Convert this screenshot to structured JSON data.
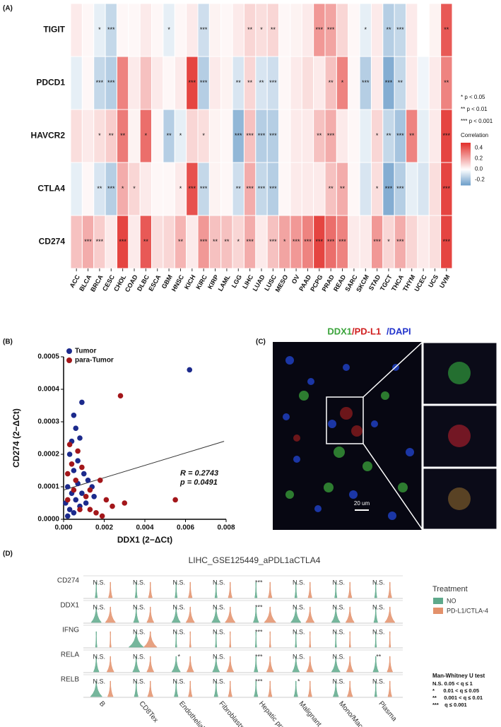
{
  "chart_data": [
    {
      "type": "heatmap",
      "panel_label": "(A)",
      "rows": [
        "TIGIT",
        "PDCD1",
        "HAVCR2",
        "CTLA4",
        "CD274"
      ],
      "categories": [
        "ACC",
        "BLCA",
        "BRCA",
        "CESC",
        "CHOL",
        "COAD",
        "DLBC",
        "ESCA",
        "GBM",
        "HNSC",
        "KICH",
        "KIRC",
        "KIRP",
        "LAML",
        "LGG",
        "LIHC",
        "LUAD",
        "LUSC",
        "MESO",
        "OV",
        "PAAD",
        "PCPG",
        "PRAD",
        "READ",
        "SARC",
        "SKCM",
        "STAD",
        "TGCT",
        "THCA",
        "THYM",
        "UCEC",
        "UCS",
        "UVM"
      ],
      "values": [
        [
          0.05,
          0.02,
          -0.05,
          -0.12,
          0.02,
          0.02,
          0.05,
          0.02,
          -0.05,
          0.02,
          0.05,
          -0.1,
          0.03,
          0.02,
          0.05,
          0.1,
          0.08,
          0.1,
          0.02,
          0.03,
          0.05,
          0.25,
          0.22,
          0.1,
          0.02,
          -0.05,
          0.05,
          -0.15,
          -0.12,
          0.05,
          0.0,
          0.03,
          0.4
        ],
        [
          -0.05,
          0.02,
          -0.12,
          -0.15,
          0.3,
          0.05,
          0.15,
          0.05,
          0.02,
          0.05,
          0.45,
          -0.15,
          0.05,
          0.03,
          -0.08,
          0.1,
          -0.08,
          -0.1,
          0.02,
          0.05,
          0.08,
          0.05,
          0.15,
          0.3,
          0.02,
          -0.15,
          0.05,
          -0.25,
          -0.12,
          0.05,
          -0.03,
          0.05,
          0.3
        ],
        [
          0.08,
          0.05,
          0.08,
          0.12,
          0.32,
          0.03,
          0.35,
          0.02,
          -0.15,
          -0.05,
          0.1,
          0.08,
          0.03,
          0.02,
          -0.22,
          0.15,
          -0.15,
          -0.15,
          0.02,
          0.05,
          0.05,
          0.15,
          0.2,
          0.05,
          0.02,
          -0.05,
          0.1,
          -0.12,
          -0.18,
          0.3,
          -0.05,
          0.05,
          0.45
        ],
        [
          -0.05,
          0.02,
          -0.08,
          -0.15,
          0.2,
          0.1,
          0.05,
          0.02,
          0.02,
          0.05,
          0.42,
          -0.12,
          0.03,
          0.02,
          -0.1,
          0.2,
          -0.12,
          -0.15,
          0.02,
          0.05,
          0.05,
          0.05,
          0.15,
          0.2,
          0.02,
          -0.08,
          0.08,
          -0.25,
          -0.15,
          -0.05,
          -0.08,
          0.08,
          0.45
        ],
        [
          0.15,
          0.2,
          0.12,
          0.05,
          0.45,
          0.05,
          0.4,
          0.08,
          0.1,
          0.18,
          0.05,
          0.25,
          0.15,
          0.15,
          0.1,
          0.2,
          0.05,
          0.15,
          0.22,
          0.25,
          0.3,
          0.45,
          0.35,
          0.3,
          0.05,
          0.05,
          0.25,
          0.1,
          0.2,
          0.1,
          0.05,
          0.08,
          0.45
        ]
      ],
      "stars": [
        [
          null,
          null,
          "*",
          "***",
          null,
          null,
          null,
          null,
          "*",
          null,
          null,
          "***",
          null,
          null,
          null,
          "**",
          "*",
          "**",
          null,
          null,
          null,
          "***",
          "***",
          null,
          null,
          "*",
          null,
          "**",
          "***",
          null,
          null,
          null,
          "**"
        ],
        [
          null,
          null,
          "***",
          "***",
          null,
          null,
          null,
          null,
          null,
          null,
          "***",
          "***",
          null,
          null,
          "**",
          "**",
          "**",
          "***",
          null,
          null,
          null,
          null,
          "**",
          "*",
          null,
          "***",
          null,
          "***",
          "**",
          null,
          null,
          null,
          "**"
        ],
        [
          null,
          null,
          "*",
          "**",
          "**",
          null,
          "*",
          null,
          "**",
          "*",
          null,
          "*",
          null,
          null,
          "***",
          "***",
          "***",
          "***",
          null,
          null,
          null,
          "**",
          "***",
          null,
          null,
          null,
          "*",
          "**",
          "***",
          "**",
          null,
          null,
          "***"
        ],
        [
          null,
          null,
          "**",
          "***",
          "*",
          "*",
          null,
          null,
          null,
          "*",
          "***",
          "***",
          null,
          null,
          "**",
          "***",
          "***",
          "***",
          null,
          null,
          null,
          null,
          "**",
          "**",
          null,
          null,
          "*",
          "***",
          "***",
          null,
          null,
          null,
          "***"
        ],
        [
          null,
          "***",
          "***",
          null,
          "***",
          null,
          "**",
          null,
          null,
          "**",
          null,
          "***",
          "**",
          "**",
          "*",
          "***",
          null,
          "***",
          "*",
          "***",
          "***",
          "***",
          "***",
          "***",
          null,
          null,
          "***",
          "*",
          "***",
          null,
          null,
          null,
          "***"
        ]
      ],
      "significance_legend": [
        "* p < 0.05",
        "** p < 0.01",
        "*** p < 0.001"
      ],
      "colorbar_title": "Correlation",
      "zlim": [
        -0.3,
        0.5
      ],
      "zticks": [
        0.4,
        0.2,
        {
          "value": 0,
          "label": "0.0"
        },
        -0.2
      ],
      "colors": [
        "#6b9dc9",
        "#ffffff",
        "#e2302c"
      ]
    },
    {
      "type": "scatter",
      "panel_label": "(B)",
      "xlabel": "DDX1 (2−ΔCt)",
      "ylabel": "CD274 (2−ΔCt)",
      "xlim": [
        0,
        0.008
      ],
      "ylim": [
        0,
        0.0005
      ],
      "xticks": [
        {
          "value": 0,
          "label": "0.000"
        },
        {
          "value": 0.002,
          "label": "0.002"
        },
        {
          "value": 0.004,
          "label": "0.004"
        },
        {
          "value": 0.006,
          "label": "0.006"
        },
        {
          "value": 0.008,
          "label": "0.008"
        }
      ],
      "yticks": [
        {
          "value": 0,
          "label": "0.0000"
        },
        {
          "value": 0.0001,
          "label": "0.0001"
        },
        {
          "value": 0.0002,
          "label": "0.0002"
        },
        {
          "value": 0.0003,
          "label": "0.0003"
        },
        {
          "value": 0.0004,
          "label": "0.0004"
        },
        {
          "value": 0.0005,
          "label": "0.0005"
        }
      ],
      "series": [
        {
          "name": "Tumor",
          "color": "#1c2a8c",
          "x": [
            0.0062,
            0.0009,
            0.0005,
            0.0006,
            0.0004,
            0.0008,
            0.0003,
            0.0007,
            0.0005,
            0.001,
            0.0012,
            0.0014,
            0.0002,
            0.0004,
            0.0006,
            0.0008,
            0.0003,
            0.0001,
            0.0005,
            0.0009,
            0.0011,
            0.0015,
            0.0007,
            0.0002
          ],
          "values": [
            0.00046,
            0.00036,
            0.00032,
            0.00028,
            0.00024,
            0.00025,
            0.0002,
            0.00018,
            0.00015,
            0.00014,
            0.00012,
            0.0001,
            0.0001,
            8e-05,
            6e-05,
            4e-05,
            3e-05,
            5e-05,
            2e-05,
            8e-05,
            5e-05,
            7e-05,
            0.00011,
            1e-05
          ]
        },
        {
          "name": "para-Tumor",
          "color": "#a3161a",
          "x": [
            0.0028,
            0.0003,
            0.0007,
            0.0004,
            0.0009,
            0.0002,
            0.0006,
            0.0018,
            0.0021,
            0.0024,
            0.003,
            0.0055,
            0.0013,
            0.0016,
            0.0019,
            0.0005,
            0.0011,
            0.0008,
            0.0002,
            0.0013
          ],
          "values": [
            0.00038,
            0.00023,
            0.00021,
            0.00017,
            0.00016,
            0.00014,
            0.00012,
            0.00012,
            6e-05,
            4e-05,
            5e-05,
            6e-05,
            3e-05,
            2e-05,
            1e-05,
            9e-05,
            7e-05,
            3e-05,
            6e-05,
            9e-05
          ]
        }
      ],
      "trend_line": {
        "x": [
          0,
          0.0079
        ],
        "y": [
          9e-05,
          0.00024
        ]
      },
      "annotations": [
        "R = 0.2743",
        "p = 0.0491"
      ]
    },
    {
      "type": "violin",
      "panel_label": "(D)",
      "title": "LIHC_GSE125449_aPDL1aCTLA4",
      "rows": [
        "CD274",
        "DDX1",
        "IFNG",
        "RELA",
        "RELB"
      ],
      "categories": [
        "B",
        "CD8Tex",
        "Endothelial",
        "Fibroblasts",
        "Hepatic progenitor",
        "Malignant",
        "Mono/Macro",
        "Plasma"
      ],
      "series": [
        {
          "name": "NO",
          "color": "#5ea98b",
          "values": [
            [
              0.1,
              0.1,
              0.1,
              0.1,
              0.1,
              0.1,
              0.1,
              0.1
            ],
            [
              0.6,
              0.3,
              0.5,
              0.5,
              0.3,
              0.6,
              0.5,
              0.2
            ],
            [
              0.05,
              0.9,
              0.05,
              0.05,
              0.05,
              0.05,
              0.05,
              0.05
            ],
            [
              0.3,
              0.4,
              0.5,
              0.4,
              0.2,
              0.4,
              0.5,
              0.3
            ],
            [
              0.7,
              0.2,
              0.2,
              0.2,
              0.2,
              0.2,
              0.3,
              0.1
            ]
          ]
        },
        {
          "name": "PD-L1/CTLA-4",
          "color": "#e3916b",
          "values": [
            [
              0.2,
              0.2,
              0.2,
              0.2,
              0.2,
              0.2,
              0.2,
              0.2
            ],
            [
              0.6,
              0.4,
              0.5,
              0.6,
              0.7,
              0.5,
              0.5,
              0.6
            ],
            [
              0.05,
              0.8,
              0.05,
              0.05,
              0.05,
              0.05,
              0.05,
              0.05
            ],
            [
              0.4,
              0.4,
              0.4,
              0.4,
              0.4,
              0.4,
              0.4,
              0.3
            ],
            [
              0.3,
              0.3,
              0.2,
              0.2,
              0.2,
              0.2,
              0.3,
              0.2
            ]
          ]
        }
      ],
      "significance": [
        [
          "N.S.",
          "N.S.",
          "N.S.",
          "N.S.",
          "***",
          "N.S.",
          "N.S.",
          "N.S."
        ],
        [
          "N.S.",
          "N.S.",
          "N.S.",
          "N.S.",
          "***",
          "N.S.",
          "N.S.",
          "N.S."
        ],
        [
          null,
          "N.S.",
          "N.S.",
          "N.S.",
          "***",
          "N.S.",
          "N.S.",
          "N.S."
        ],
        [
          "N.S.",
          "N.S.",
          "*",
          "N.S.",
          "***",
          "N.S.",
          "N.S.",
          "**"
        ],
        [
          "N.S.",
          "N.S.",
          "N.S.",
          "N.S.",
          "***",
          "*",
          "N.S.",
          "N.S."
        ]
      ],
      "legend_title": "Treatment",
      "test_legend": {
        "title": "Man-Whitney U test",
        "items": [
          "N.S. 0.05 < q ≤ 1",
          "*      0.01 < q ≤ 0.05",
          "**     0.001 < q ≤ 0.01",
          "***    q ≤ 0.001"
        ]
      }
    }
  ],
  "image_panel": {
    "panel_label": "(C)",
    "stains": [
      "DDX1",
      "/PD-L1",
      "/DAPI"
    ],
    "scale_bar": "20 um"
  }
}
